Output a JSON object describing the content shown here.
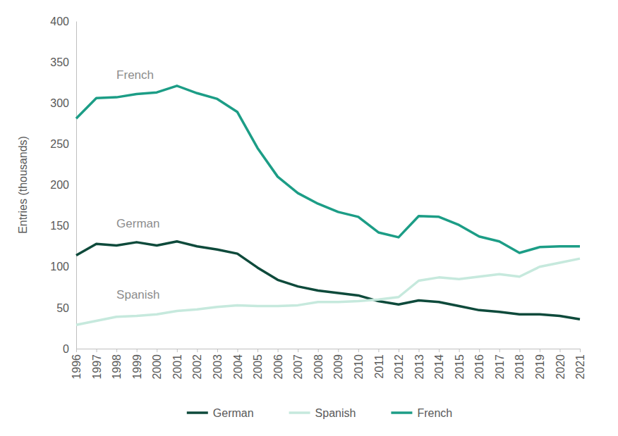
{
  "chart_data": {
    "type": "line",
    "y_label": "Entries (thousands)",
    "categories": [
      "1996",
      "1997",
      "1998",
      "1999",
      "2000",
      "2001",
      "2002",
      "2003",
      "2004",
      "2005",
      "2006",
      "2007",
      "2008",
      "2009",
      "2010",
      "2011",
      "2012",
      "2013",
      "2014",
      "2015",
      "2016",
      "2017",
      "2018",
      "2019",
      "2020",
      "2021"
    ],
    "series": [
      {
        "name": "German",
        "color": "#0e4a3b",
        "values": [
          114,
          128,
          126,
          130,
          126,
          131,
          125,
          121,
          116,
          99,
          84,
          76,
          71,
          68,
          65,
          58,
          54,
          59,
          57,
          52,
          47,
          45,
          42,
          42,
          40,
          36
        ]
      },
      {
        "name": "Spanish",
        "color": "#c6e9dd",
        "values": [
          29,
          34,
          39,
          40,
          42,
          46,
          48,
          51,
          53,
          52,
          52,
          53,
          57,
          57,
          58,
          60,
          63,
          83,
          87,
          85,
          88,
          91,
          88,
          100,
          105,
          110
        ]
      },
      {
        "name": "French",
        "color": "#1c9d86",
        "values": [
          281,
          306,
          307,
          311,
          313,
          321,
          312,
          305,
          289,
          245,
          210,
          190,
          177,
          167,
          161,
          142,
          136,
          162,
          161,
          151,
          137,
          131,
          117,
          124,
          125,
          125
        ]
      }
    ],
    "annotations": [
      "French",
      "German",
      "Spanish"
    ],
    "ylim": [
      0,
      400
    ],
    "yticks": [
      0,
      50,
      100,
      150,
      200,
      250,
      300,
      350,
      400
    ],
    "grid": false,
    "legend": "bottom"
  }
}
